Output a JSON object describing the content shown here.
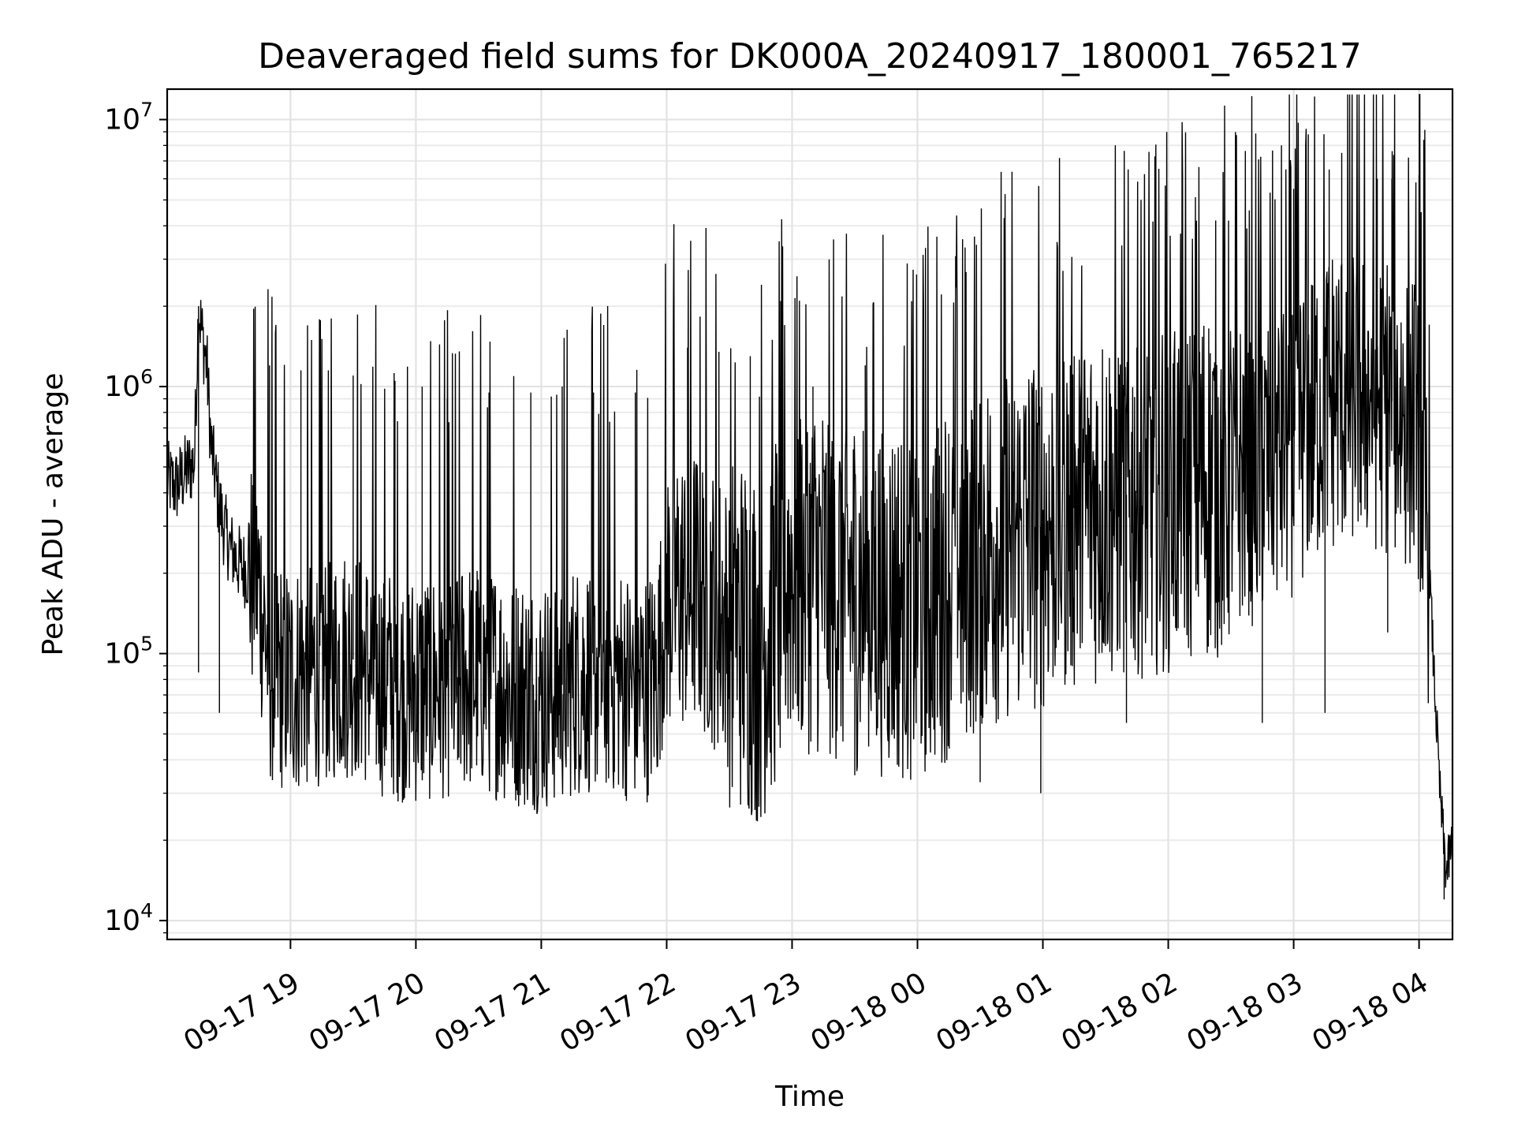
{
  "chart_data": {
    "type": "line",
    "title": "Deaveraged field sums for DK000A_20240917_180001_765217",
    "xlabel": "Time",
    "ylabel": "Peak ADU - average",
    "xscale": "time",
    "yscale": "log",
    "xlim": [
      "2024-09-17 18:01",
      "2024-09-18 04:16"
    ],
    "ylim": [
      8500,
      13000000
    ],
    "grid": true,
    "legend": "none",
    "line_color": "#000000",
    "x_ticks": [
      {
        "x": "2024-09-17 19:00",
        "label": "09-17 19"
      },
      {
        "x": "2024-09-17 20:00",
        "label": "09-17 20"
      },
      {
        "x": "2024-09-17 21:00",
        "label": "09-17 21"
      },
      {
        "x": "2024-09-17 22:00",
        "label": "09-17 22"
      },
      {
        "x": "2024-09-17 23:00",
        "label": "09-17 23"
      },
      {
        "x": "2024-09-18 00:00",
        "label": "09-18 00"
      },
      {
        "x": "2024-09-18 01:00",
        "label": "09-18 01"
      },
      {
        "x": "2024-09-18 02:00",
        "label": "09-18 02"
      },
      {
        "x": "2024-09-18 03:00",
        "label": "09-18 03"
      },
      {
        "x": "2024-09-18 04:00",
        "label": "09-18 04"
      }
    ],
    "y_ticks": [
      {
        "value": 10000,
        "base": "10",
        "exp": "4"
      },
      {
        "value": 100000,
        "base": "10",
        "exp": "5"
      },
      {
        "value": 1000000,
        "base": "10",
        "exp": "6"
      },
      {
        "value": 10000000,
        "base": "10",
        "exp": "7"
      }
    ],
    "series": [
      {
        "x": [
          "2024-09-17 18:01",
          "2024-09-17 18:05",
          "2024-09-17 18:10",
          "2024-09-17 18:14",
          "2024-09-17 18:16",
          "2024-09-17 18:18",
          "2024-09-17 18:20",
          "2024-09-17 18:22",
          "2024-09-17 18:25",
          "2024-09-17 18:28",
          "2024-09-17 18:31",
          "2024-09-17 18:35",
          "2024-09-17 18:40",
          "2024-09-17 18:45",
          "2024-09-17 18:50",
          "2024-09-17 18:55",
          "2024-09-17 19:00",
          "2024-09-17 19:15",
          "2024-09-17 19:30",
          "2024-09-17 19:45",
          "2024-09-17 20:00",
          "2024-09-17 20:15",
          "2024-09-17 20:30",
          "2024-09-17 20:45",
          "2024-09-17 21:00",
          "2024-09-17 21:15",
          "2024-09-17 21:30",
          "2024-09-17 21:45",
          "2024-09-17 21:55",
          "2024-09-17 22:00",
          "2024-09-17 22:15",
          "2024-09-17 22:30",
          "2024-09-17 22:45",
          "2024-09-17 23:00",
          "2024-09-17 23:15",
          "2024-09-17 23:30",
          "2024-09-17 23:45",
          "2024-09-18 00:00",
          "2024-09-18 00:15",
          "2024-09-18 00:30",
          "2024-09-18 00:45",
          "2024-09-18 01:00",
          "2024-09-18 01:15",
          "2024-09-18 01:30",
          "2024-09-18 01:45",
          "2024-09-18 02:00",
          "2024-09-18 02:15",
          "2024-09-18 02:30",
          "2024-09-18 02:45",
          "2024-09-18 03:00",
          "2024-09-18 03:15",
          "2024-09-18 03:30",
          "2024-09-18 03:45",
          "2024-09-18 03:55",
          "2024-09-18 04:00",
          "2024-09-18 04:04",
          "2024-09-18 04:07",
          "2024-09-18 04:10",
          "2024-09-18 04:13",
          "2024-09-18 04:16"
        ],
        "y": [
          450000,
          420000,
          480000,
          520000,
          2000000,
          1500000,
          1200000,
          600000,
          400000,
          300000,
          250000,
          220000,
          200000,
          180000,
          90000,
          85000,
          80000,
          90000,
          95000,
          80000,
          75000,
          80000,
          85000,
          75000,
          70000,
          80000,
          85000,
          75000,
          80000,
          170000,
          180000,
          130000,
          110000,
          220000,
          200000,
          180000,
          170000,
          160000,
          200000,
          250000,
          280000,
          300000,
          350000,
          380000,
          400000,
          420000,
          450000,
          480000,
          500000,
          650000,
          900000,
          1000000,
          900000,
          800000,
          700000,
          300000,
          90000,
          30000,
          15000,
          20000
        ],
        "spikes": [
          {
            "x": "2024-09-17 18:50",
            "y": 1200000
          },
          {
            "x": "2024-09-17 19:05",
            "y": 1150000
          },
          {
            "x": "2024-09-17 19:30",
            "y": 1100000
          },
          {
            "x": "2024-09-17 19:50",
            "y": 1050000
          },
          {
            "x": "2024-09-17 20:03",
            "y": 1000000
          },
          {
            "x": "2024-09-17 20:15",
            "y": 900000
          },
          {
            "x": "2024-09-17 20:35",
            "y": 950000
          },
          {
            "x": "2024-09-17 20:55",
            "y": 950000
          },
          {
            "x": "2024-09-17 21:10",
            "y": 1000000
          },
          {
            "x": "2024-09-17 21:25",
            "y": 950000
          },
          {
            "x": "2024-09-17 21:45",
            "y": 950000
          },
          {
            "x": "2024-09-17 22:10",
            "y": 1400000
          },
          {
            "x": "2024-09-17 22:25",
            "y": 1350000
          },
          {
            "x": "2024-09-17 22:40",
            "y": 1300000
          },
          {
            "x": "2024-09-17 23:10",
            "y": 1000000
          },
          {
            "x": "2024-09-17 23:35",
            "y": 1200000
          },
          {
            "x": "2024-09-18 00:10",
            "y": 700000
          },
          {
            "x": "2024-09-18 00:40",
            "y": 900000
          },
          {
            "x": "2024-09-18 01:15",
            "y": 1300000
          },
          {
            "x": "2024-09-18 01:45",
            "y": 1400000
          },
          {
            "x": "2024-09-18 02:15",
            "y": 1350000
          },
          {
            "x": "2024-09-18 02:45",
            "y": 1300000
          },
          {
            "x": "2024-09-18 03:00",
            "y": 5500000
          },
          {
            "x": "2024-09-18 03:07",
            "y": 8800000
          },
          {
            "x": "2024-09-18 03:17",
            "y": 6500000
          },
          {
            "x": "2024-09-18 03:23",
            "y": 7500000
          },
          {
            "x": "2024-09-18 03:28",
            "y": 9000000
          },
          {
            "x": "2024-09-18 03:40",
            "y": 6000000
          },
          {
            "x": "2024-09-18 03:47",
            "y": 6000000
          },
          {
            "x": "2024-09-18 04:00",
            "y": 6200000
          },
          {
            "x": "2024-09-18 04:01",
            "y": 4500000
          }
        ],
        "dips": [
          {
            "x": "2024-09-17 18:16",
            "y": 85000
          },
          {
            "x": "2024-09-17 18:26",
            "y": 60000
          },
          {
            "x": "2024-09-17 19:00",
            "y": 42000
          },
          {
            "x": "2024-09-17 19:45",
            "y": 38000
          },
          {
            "x": "2024-09-17 20:20",
            "y": 40000
          },
          {
            "x": "2024-09-17 20:55",
            "y": 35000
          },
          {
            "x": "2024-09-17 21:35",
            "y": 36000
          },
          {
            "x": "2024-09-17 22:45",
            "y": 40000
          },
          {
            "x": "2024-09-17 23:30",
            "y": 35000
          },
          {
            "x": "2024-09-18 00:30",
            "y": 33000
          },
          {
            "x": "2024-09-18 00:59",
            "y": 30000
          },
          {
            "x": "2024-09-18 01:40",
            "y": 55000
          },
          {
            "x": "2024-09-18 02:45",
            "y": 55000
          },
          {
            "x": "2024-09-18 03:15",
            "y": 60000
          },
          {
            "x": "2024-09-18 03:45",
            "y": 120000
          },
          {
            "x": "2024-09-18 04:12",
            "y": 12000
          }
        ]
      }
    ]
  }
}
